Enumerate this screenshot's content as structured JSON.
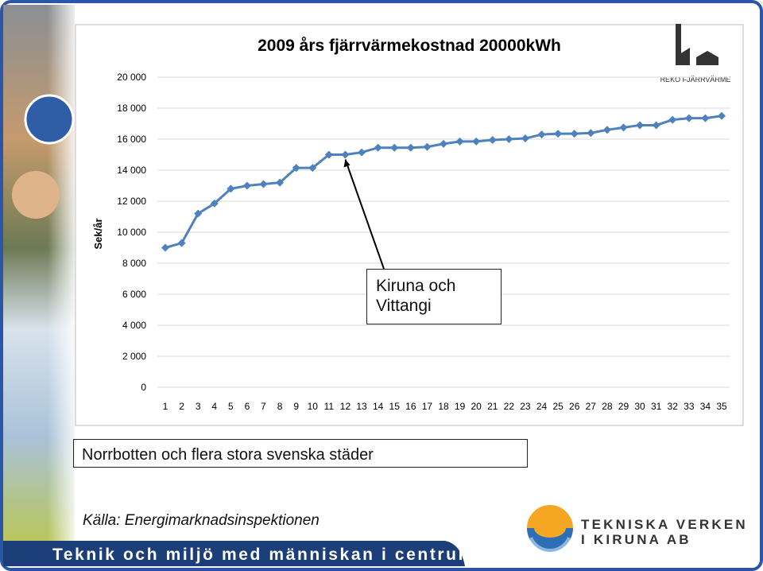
{
  "chart_data": {
    "type": "line",
    "title": "2009 års fjärrvärmekostnad 20000kWh",
    "y_label": "Sek/år",
    "categories": [
      "1",
      "2",
      "3",
      "4",
      "5",
      "6",
      "7",
      "8",
      "9",
      "10",
      "11",
      "12",
      "13",
      "14",
      "15",
      "16",
      "17",
      "18",
      "19",
      "20",
      "21",
      "22",
      "23",
      "24",
      "25",
      "26",
      "27",
      "28",
      "29",
      "30",
      "31",
      "32",
      "33",
      "34",
      "35"
    ],
    "values": [
      9000,
      9300,
      11200,
      11850,
      12800,
      13000,
      13100,
      13200,
      14150,
      14150,
      15000,
      15000,
      15150,
      15450,
      15450,
      15450,
      15500,
      15700,
      15850,
      15850,
      15950,
      16000,
      16050,
      16300,
      16350,
      16350,
      16400,
      16600,
      16750,
      16900,
      16900,
      17250,
      17350,
      17350,
      17500
    ],
    "color": "#4f81bd",
    "ylim": [
      0,
      20000
    ],
    "yticks": [
      0,
      {
        "value": 2000,
        "label": "2 000"
      },
      {
        "value": 4000,
        "label": "4 000"
      },
      {
        "value": 6000,
        "label": "6 000"
      },
      {
        "value": 8000,
        "label": "8 000"
      },
      {
        "value": 10000,
        "label": "10 000"
      },
      {
        "value": 12000,
        "label": "12 000"
      },
      {
        "value": 14000,
        "label": "14 000"
      },
      {
        "value": 16000,
        "label": "16 000"
      },
      {
        "value": 18000,
        "label": "18 000"
      },
      {
        "value": 20000,
        "label": "20 000"
      }
    ],
    "grid": true,
    "annotation": {
      "text": "Kiruna och Vittangi",
      "category_index": 11
    }
  },
  "slide": {
    "note": "Norrbotten och flera stora svenska städer",
    "source": "Källa: Energimarknadsinspektionen",
    "footer": "Teknik och miljö med människan i centrum",
    "logo_top": "REKO FJÄRRVÄRME",
    "logo_bottom_1": "TEKNISKA VERKEN",
    "logo_bottom_2": "I KIRUNA AB"
  }
}
